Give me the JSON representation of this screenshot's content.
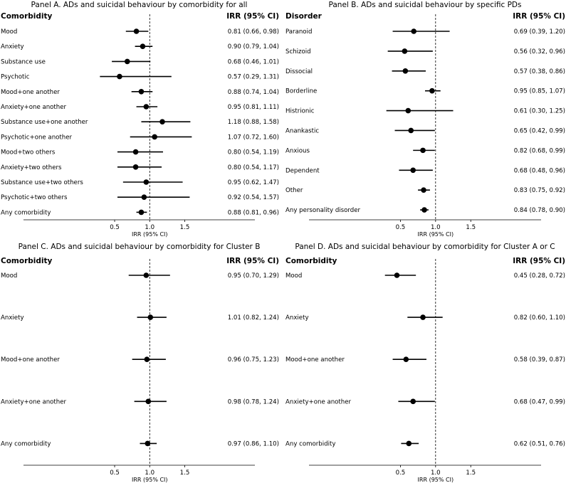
{
  "chart_data": [
    {
      "type": "forest",
      "title": "Panel A. ADs and suicidal behaviour by comorbidity for all",
      "row_header": "Comorbidity",
      "ci_header": "IRR (95% CI)",
      "xlabel": "IRR (95% CI)",
      "xticks": [
        "0.5",
        "1.0",
        "1.5"
      ],
      "tick_values": [
        0.5,
        1.0,
        1.5
      ],
      "xlim": [
        -0.8,
        2.5
      ],
      "reference": 1.0,
      "rows": [
        {
          "label": "Mood",
          "irr": 0.81,
          "lo": 0.66,
          "hi": 0.98,
          "text": "0.81 (0.66, 0.98)"
        },
        {
          "label": "Anxiety",
          "irr": 0.9,
          "lo": 0.79,
          "hi": 1.04,
          "text": "0.90 (0.79, 1.04)"
        },
        {
          "label": "Substance use",
          "irr": 0.68,
          "lo": 0.46,
          "hi": 1.01,
          "text": "0.68 (0.46, 1.01)"
        },
        {
          "label": "Psychotic",
          "irr": 0.57,
          "lo": 0.29,
          "hi": 1.31,
          "text": "0.57 (0.29, 1.31)"
        },
        {
          "label": "Mood+one another",
          "irr": 0.88,
          "lo": 0.74,
          "hi": 1.04,
          "text": "0.88 (0.74, 1.04)"
        },
        {
          "label": "Anxiety+one another",
          "irr": 0.95,
          "lo": 0.81,
          "hi": 1.11,
          "text": "0.95 (0.81, 1.11)"
        },
        {
          "label": "Substance use+one another",
          "irr": 1.18,
          "lo": 0.88,
          "hi": 1.58,
          "text": "1.18 (0.88, 1.58)"
        },
        {
          "label": "Psychotic+one another",
          "irr": 1.07,
          "lo": 0.72,
          "hi": 1.6,
          "text": "1.07 (0.72, 1.60)"
        },
        {
          "label": "Mood+two others",
          "irr": 0.8,
          "lo": 0.54,
          "hi": 1.19,
          "text": "0.80 (0.54, 1.19)"
        },
        {
          "label": "Anxiety+two others",
          "irr": 0.8,
          "lo": 0.54,
          "hi": 1.17,
          "text": "0.80 (0.54, 1.17)"
        },
        {
          "label": "Substance use+two others",
          "irr": 0.95,
          "lo": 0.62,
          "hi": 1.47,
          "text": "0.95 (0.62, 1.47)"
        },
        {
          "label": "Psychotic+two others",
          "irr": 0.92,
          "lo": 0.54,
          "hi": 1.57,
          "text": "0.92 (0.54, 1.57)"
        },
        {
          "label": "Any comorbidity",
          "irr": 0.88,
          "lo": 0.81,
          "hi": 0.96,
          "text": "0.88 (0.81, 0.96)"
        }
      ]
    },
    {
      "type": "forest",
      "title": "Panel B. ADs and suicidal behaviour by specific PDs",
      "row_header": "Disorder",
      "ci_header": "IRR (95% CI)",
      "xlabel": "IRR (95% CI)",
      "xticks": [
        "0.5",
        "1.0",
        "1.5"
      ],
      "tick_values": [
        0.5,
        1.0,
        1.5
      ],
      "xlim": [
        -0.8,
        2.5
      ],
      "reference": 1.0,
      "rows": [
        {
          "label": "Paranoid",
          "irr": 0.69,
          "lo": 0.39,
          "hi": 1.2,
          "text": "0.69 (0.39, 1.20)"
        },
        {
          "label": "Schizoid",
          "irr": 0.56,
          "lo": 0.32,
          "hi": 0.96,
          "text": "0.56 (0.32, 0.96)"
        },
        {
          "label": "Dissocial",
          "irr": 0.57,
          "lo": 0.38,
          "hi": 0.86,
          "text": "0.57 (0.38, 0.86)"
        },
        {
          "label": "Borderline",
          "irr": 0.95,
          "lo": 0.85,
          "hi": 1.07,
          "text": "0.95 (0.85, 1.07)"
        },
        {
          "label": "Histrionic",
          "irr": 0.61,
          "lo": 0.3,
          "hi": 1.25,
          "text": "0.61 (0.30, 1.25)"
        },
        {
          "label": "Anankastic",
          "irr": 0.65,
          "lo": 0.42,
          "hi": 0.99,
          "text": "0.65 (0.42, 0.99)"
        },
        {
          "label": "Anxious",
          "irr": 0.82,
          "lo": 0.68,
          "hi": 0.99,
          "text": "0.82 (0.68, 0.99)"
        },
        {
          "label": "Dependent",
          "irr": 0.68,
          "lo": 0.48,
          "hi": 0.96,
          "text": "0.68 (0.48, 0.96)"
        },
        {
          "label": "Other",
          "irr": 0.83,
          "lo": 0.75,
          "hi": 0.92,
          "text": "0.83 (0.75, 0.92)"
        },
        {
          "label": "Any personality disorder",
          "irr": 0.84,
          "lo": 0.78,
          "hi": 0.9,
          "text": "0.84 (0.78, 0.90)"
        }
      ]
    },
    {
      "type": "forest",
      "title": "Panel C. ADs and suicidal behaviour by comorbidity for Cluster B",
      "row_header": "Comorbidity",
      "ci_header": "IRR (95% CI)",
      "xlabel": "IRR (95% CI)",
      "xticks": [
        "0.5",
        "1.0",
        "1.5"
      ],
      "tick_values": [
        0.5,
        1.0,
        1.5
      ],
      "xlim": [
        -0.8,
        2.5
      ],
      "reference": 1.0,
      "rows": [
        {
          "label": "Mood",
          "irr": 0.95,
          "lo": 0.7,
          "hi": 1.29,
          "text": "0.95 (0.70, 1.29)"
        },
        {
          "label": "Anxiety",
          "irr": 1.01,
          "lo": 0.82,
          "hi": 1.24,
          "text": "1.01 (0.82, 1.24)"
        },
        {
          "label": "Mood+one another",
          "irr": 0.96,
          "lo": 0.75,
          "hi": 1.23,
          "text": "0.96 (0.75, 1.23)"
        },
        {
          "label": "Anxiety+one another",
          "irr": 0.98,
          "lo": 0.78,
          "hi": 1.24,
          "text": "0.98 (0.78, 1.24)"
        },
        {
          "label": "Any comorbidity",
          "irr": 0.97,
          "lo": 0.86,
          "hi": 1.1,
          "text": "0.97 (0.86, 1.10)"
        }
      ]
    },
    {
      "type": "forest",
      "title": "Panel D. ADs and suicidal behaviour by comorbidity for Cluster A or C",
      "row_header": "Comorbidity",
      "ci_header": "IRR (95% CI)",
      "xlabel": "IRR (95% CI)",
      "xticks": [
        "0.5",
        "1.0",
        "1.5"
      ],
      "tick_values": [
        0.5,
        1.0,
        1.5
      ],
      "xlim": [
        -0.8,
        2.5
      ],
      "reference": 1.0,
      "rows": [
        {
          "label": "Mood",
          "irr": 0.45,
          "lo": 0.28,
          "hi": 0.72,
          "text": "0.45 (0.28, 0.72)"
        },
        {
          "label": "Anxiety",
          "irr": 0.82,
          "lo": 0.6,
          "hi": 1.1,
          "text": "0.82 (0.60, 1.10)"
        },
        {
          "label": "Mood+one another",
          "irr": 0.58,
          "lo": 0.39,
          "hi": 0.87,
          "text": "0.58 (0.39, 0.87)"
        },
        {
          "label": "Anxiety+one another",
          "irr": 0.68,
          "lo": 0.47,
          "hi": 0.99,
          "text": "0.68 (0.47, 0.99)"
        },
        {
          "label": "Any comorbidity",
          "irr": 0.62,
          "lo": 0.51,
          "hi": 0.76,
          "text": "0.62 (0.51, 0.76)"
        }
      ]
    }
  ]
}
